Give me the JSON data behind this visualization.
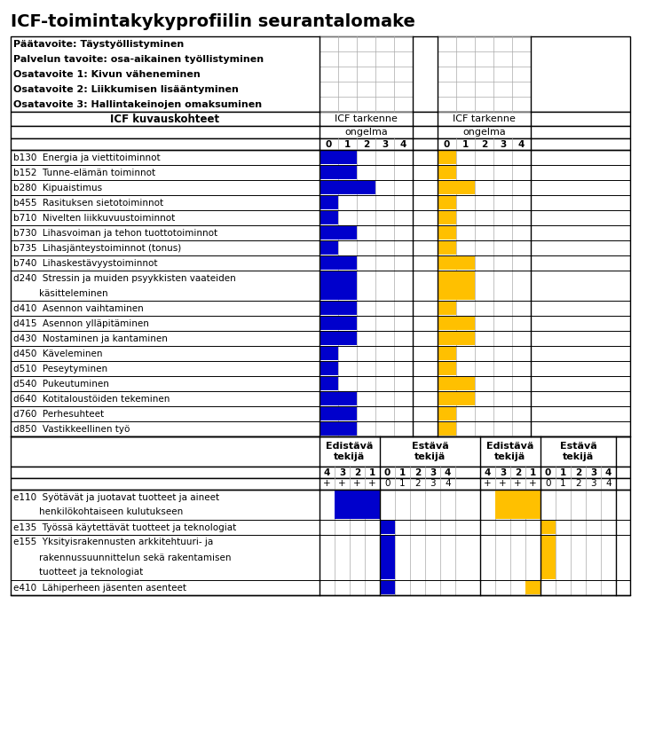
{
  "title": "ICF-toimintakykyprofiilin seurantalomake",
  "goals": [
    "Päätavoite: Täystyöllistyminen",
    "Palvelun tavoite: osa-aikainen työllistyminen",
    "Osatavoite 1: Kivun väheneminen",
    "Osatavoite 2: Liikkumisen lisääntyminen",
    "Osatavoite 3: Hallintakeinojen omaksuminen"
  ],
  "col_header": "ICF kuvauskohteet",
  "icf_tarkenne": "ICF tarkenne",
  "ongelma": "ongelma",
  "body_rows": [
    {
      "code": "b130",
      "name": "Energia ja viettitoiminnot",
      "blue_val": 2,
      "yellow_val": 1
    },
    {
      "code": "b152",
      "name": "Tunne-elämän toiminnot",
      "blue_val": 2,
      "yellow_val": 1
    },
    {
      "code": "b280",
      "name": "Kipuaistimus",
      "blue_val": 3,
      "yellow_val": 2
    },
    {
      "code": "b455",
      "name": "Rasituksen sietotoiminnot",
      "blue_val": 1,
      "yellow_val": 1
    },
    {
      "code": "b710",
      "name": "Nivelten liikkuvuustoiminnot",
      "blue_val": 1,
      "yellow_val": 1
    },
    {
      "code": "b730",
      "name": "Lihasvoiman ja tehon tuottotoiminnot",
      "blue_val": 2,
      "yellow_val": 1
    },
    {
      "code": "b735",
      "name": "Lihasjänteystoiminnot (tonus)",
      "blue_val": 1,
      "yellow_val": 1
    },
    {
      "code": "b740",
      "name": "Lihaskestävyystoiminnot",
      "blue_val": 2,
      "yellow_val": 2
    },
    {
      "code": "d240",
      "name": "Stressin ja muiden psyykkisten vaateiden\nkäsitteleminen",
      "blue_val": 2,
      "yellow_val": 2
    },
    {
      "code": "d410",
      "name": "Asennon vaihtaminen",
      "blue_val": 2,
      "yellow_val": 1
    },
    {
      "code": "d415",
      "name": "Asennon ylläpitäminen",
      "blue_val": 2,
      "yellow_val": 2
    },
    {
      "code": "d430",
      "name": "Nostaminen ja kantaminen",
      "blue_val": 2,
      "yellow_val": 2
    },
    {
      "code": "d450",
      "name": "Käveleminen",
      "blue_val": 1,
      "yellow_val": 1
    },
    {
      "code": "d510",
      "name": "Peseytyminen",
      "blue_val": 1,
      "yellow_val": 1
    },
    {
      "code": "d540",
      "name": "Pukeutuminen",
      "blue_val": 1,
      "yellow_val": 2
    },
    {
      "code": "d640",
      "name": "Kotitaloustöiden tekeminen",
      "blue_val": 2,
      "yellow_val": 2
    },
    {
      "code": "d760",
      "name": "Perhesuhteet",
      "blue_val": 2,
      "yellow_val": 1
    },
    {
      "code": "d850",
      "name": "Vastikkeellinen työ",
      "blue_val": 2,
      "yellow_val": 1
    }
  ],
  "env_rows": [
    {
      "code": "e110",
      "name": "Syötävät ja juotavat tuotteet ja aineet\nhenkilökohtaiseen kulutukseen",
      "blue_edistava": 3,
      "blue_estava": 0,
      "yellow_edistava": 3,
      "yellow_estava": 0
    },
    {
      "code": "e135",
      "name": "Työssä käytettävät tuotteet ja teknologiat",
      "blue_edistava": 0,
      "blue_estava": 1,
      "yellow_edistava": 0,
      "yellow_estava": 1
    },
    {
      "code": "e155",
      "name": "Yksityisrakennusten arkkitehtuuri- ja\nrakennussuunnittelun sekä rakentamisen\ntuotteet ja teknologiat",
      "blue_edistava": 0,
      "blue_estava": 1,
      "yellow_edistava": 0,
      "yellow_estava": 1
    },
    {
      "code": "e410",
      "name": "Lähiperheen jäsenten asenteet",
      "blue_edistava": 0,
      "blue_estava": 1,
      "yellow_edistava": 1,
      "yellow_estava": 0
    }
  ],
  "blue_color": "#0000CC",
  "yellow_color": "#FFC000",
  "grid_color": "#AAAAAA",
  "border_color": "#000000",
  "scale_labels": [
    "0",
    "1",
    "2",
    "3",
    "4"
  ],
  "neg_labels": [
    "4",
    "3",
    "2",
    "1"
  ],
  "plus_labels": [
    "+",
    "+",
    "+",
    "+"
  ]
}
